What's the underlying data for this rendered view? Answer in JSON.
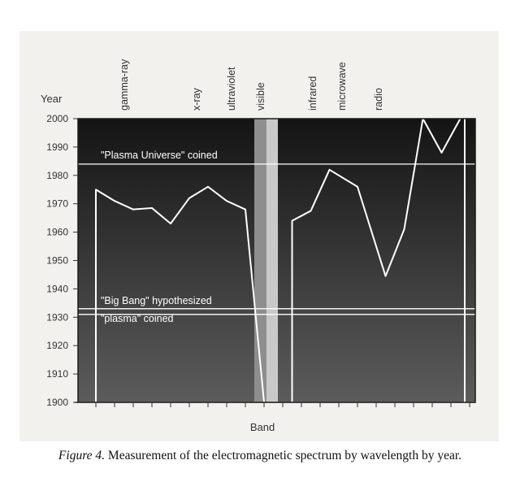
{
  "chart_data": {
    "type": "line",
    "ylabel": "Year",
    "xlabel": "Band",
    "ylim": [
      1900,
      2000
    ],
    "yticks": [
      "2000",
      "1990",
      "1980",
      "1970",
      "1960",
      "1950",
      "1940",
      "1930",
      "1920",
      "1910",
      "1900"
    ],
    "bands": [
      "gamma-ray",
      "x-ray",
      "ultraviolet",
      "visible",
      "infrared",
      "microwave",
      "radio"
    ],
    "series": [
      {
        "segment": "left",
        "x": [
          0,
          1,
          2,
          3,
          4,
          5,
          6,
          7,
          8,
          9
        ],
        "y": [
          1975,
          1971,
          1968,
          1968.5,
          1963,
          1972,
          1976,
          1971,
          1968,
          1900
        ]
      },
      {
        "segment": "right",
        "x": [
          10.5,
          11.5,
          12.5,
          14,
          15.5,
          16.5,
          17.5,
          18.5,
          19.5
        ],
        "y": [
          1964,
          1967.5,
          1982,
          1976,
          1944.5,
          1961,
          2000,
          1988,
          2000
        ]
      }
    ],
    "reference_lines": [
      {
        "year": 1984,
        "label": "\"Plasma Universe\" coined"
      },
      {
        "year": 1933,
        "label": "\"Big Bang\" hypothesized"
      },
      {
        "year": 1931,
        "label": "\"plasma\" coined"
      }
    ],
    "colors": {
      "plot_top": "#141414",
      "plot_bottom": "#5c5c5c",
      "line": "#ffffff",
      "visible_band": "#c9c9c9"
    }
  },
  "caption": {
    "label": "Figure 4.",
    "text": " Measurement of the electromagnetic spectrum by wavelength by year."
  }
}
